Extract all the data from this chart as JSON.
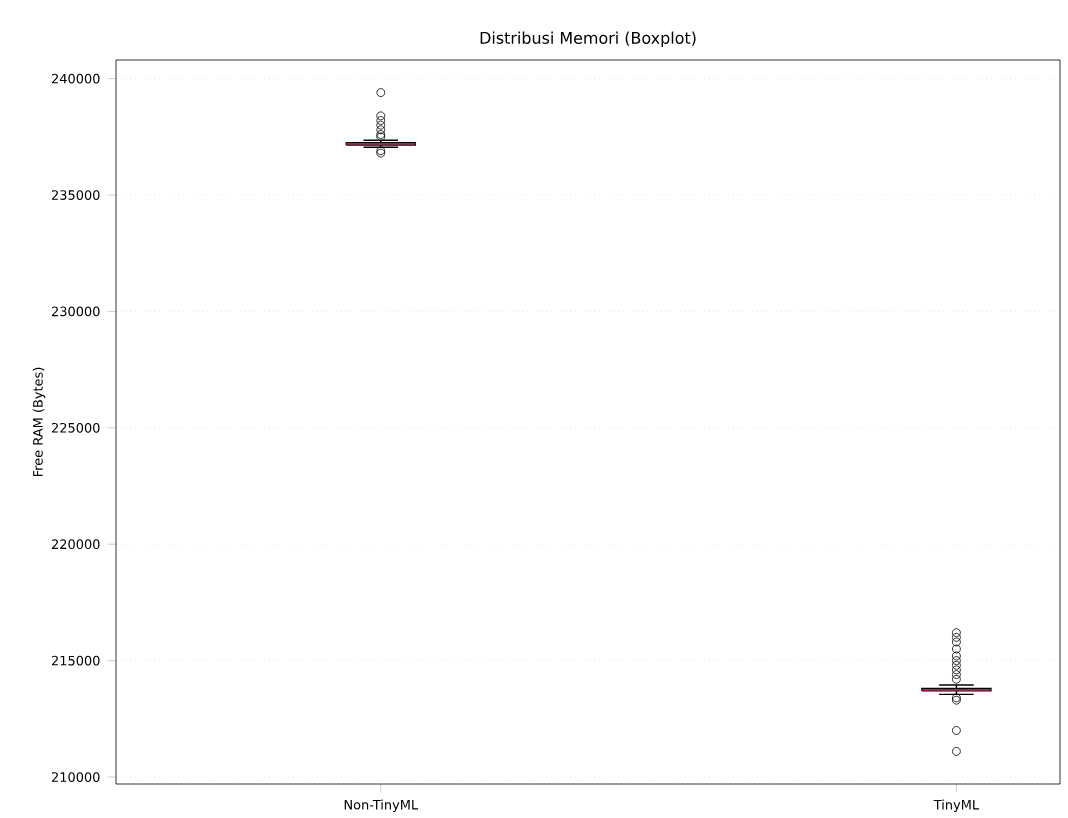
{
  "chart_data": {
    "type": "box",
    "title": "Distribusi Memori (Boxplot)",
    "ylabel": "Free RAM (Bytes)",
    "categories": [
      "Non-TinyML",
      "TinyML"
    ],
    "boxes": [
      {
        "low": 237050,
        "q1": 237150,
        "median": 237200,
        "q3": 237250,
        "high": 237350,
        "outliers": [
          239400,
          238400,
          238200,
          238000,
          237800,
          237600,
          237500,
          236900,
          236800
        ]
      },
      {
        "low": 213550,
        "q1": 213700,
        "median": 213750,
        "q3": 213800,
        "high": 213950,
        "outliers": [
          216200,
          216000,
          215800,
          215500,
          215200,
          215000,
          214800,
          214600,
          214400,
          214200,
          213400,
          213300,
          212000,
          211100
        ]
      }
    ],
    "color": "#000000",
    "ylim": [
      209700,
      240800
    ],
    "yticks": [
      210000,
      215000,
      220000,
      225000,
      230000,
      235000,
      240000
    ],
    "grid": "y"
  }
}
